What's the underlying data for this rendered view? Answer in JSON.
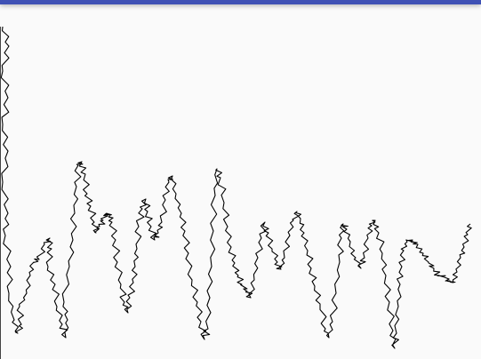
{
  "colors": {
    "app_bar": "#3f51b5",
    "background": "#fafafa",
    "stroke": "#000000",
    "axis": "#444444"
  },
  "icons": [],
  "drawing": {
    "kind": "freehand-random-walk-stroke"
  }
}
